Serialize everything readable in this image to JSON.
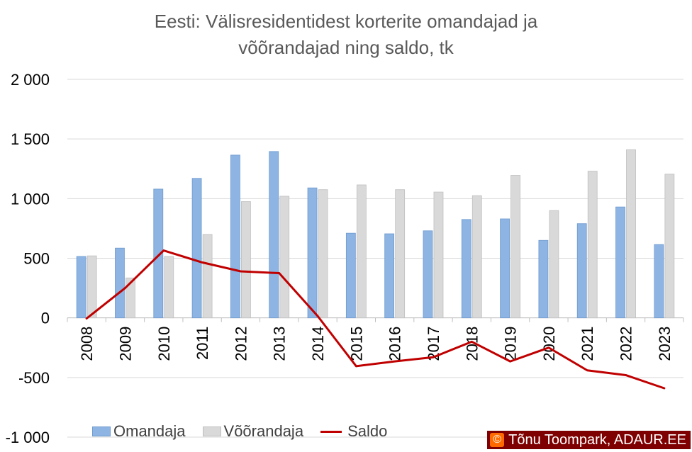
{
  "chart_data": {
    "type": "bar",
    "title_line1": "Eesti: Välisresidentidest korterite omandajad ja",
    "title_line2": "võõrandajad ning saldo, tk",
    "categories": [
      "2008",
      "2009",
      "2010",
      "2011",
      "2012",
      "2013",
      "2014",
      "2015",
      "2016",
      "2017",
      "2018",
      "2019",
      "2020",
      "2021",
      "2022",
      "2023"
    ],
    "series": [
      {
        "name": "Omandaja",
        "kind": "bar",
        "color": "#8db4e2",
        "values": [
          515,
          585,
          1080,
          1170,
          1365,
          1395,
          1090,
          710,
          705,
          730,
          825,
          830,
          650,
          790,
          930,
          615
        ]
      },
      {
        "name": "Võõrandaja",
        "kind": "bar",
        "color": "#d9d9d9",
        "values": [
          520,
          335,
          515,
          700,
          975,
          1020,
          1075,
          1115,
          1075,
          1055,
          1025,
          1195,
          900,
          1230,
          1410,
          1205
        ]
      },
      {
        "name": "Saldo",
        "kind": "line",
        "color": "#c00000",
        "values": [
          -5,
          250,
          565,
          465,
          390,
          375,
          15,
          -405,
          -365,
          -330,
          -200,
          -365,
          -250,
          -440,
          -480,
          -590
        ]
      }
    ],
    "ylim": [
      -1000,
      2000
    ],
    "yticks": [
      2000,
      1500,
      1000,
      500,
      0,
      -500,
      -1000
    ],
    "ytick_labels": [
      "2 000",
      "1 500",
      "1 000",
      "500",
      "0",
      "-500",
      "-1 000"
    ],
    "grid": true,
    "legend_position": "bottom"
  },
  "credit": {
    "icon": "©",
    "text": "Tõnu Toompark, ADAUR.EE"
  }
}
